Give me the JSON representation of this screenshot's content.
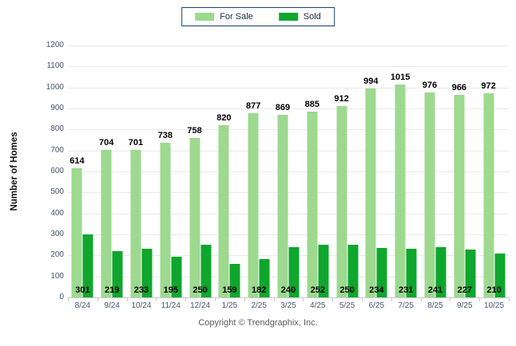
{
  "chart_data": {
    "type": "bar",
    "title": "",
    "ylabel": "Number of Homes",
    "xlabel": "",
    "categories": [
      "8/24",
      "9/24",
      "10/24",
      "11/24",
      "12/24",
      "1/25",
      "2/25",
      "3/25",
      "4/25",
      "5/25",
      "6/25",
      "7/25",
      "8/25",
      "9/25",
      "10/25"
    ],
    "series": [
      {
        "name": "For Sale",
        "color": "#9DD98F",
        "values": [
          614,
          704,
          701,
          738,
          758,
          820,
          877,
          869,
          885,
          912,
          994,
          1015,
          976,
          966,
          972
        ]
      },
      {
        "name": "Sold",
        "color": "#0FA62D",
        "values": [
          301,
          219,
          233,
          195,
          250,
          159,
          182,
          240,
          252,
          250,
          234,
          231,
          241,
          227,
          210
        ]
      }
    ],
    "ylim": [
      0,
      1200
    ],
    "yticks": [
      0,
      100,
      200,
      300,
      400,
      500,
      600,
      700,
      800,
      900,
      1000,
      1100,
      1200
    ],
    "grid": "horizontal",
    "legend_position": "top-center",
    "value_label_style": {
      "for_sale": "above bar",
      "sold": "at bar base"
    }
  },
  "footer": {
    "copyright": "Copyright © Trendgraphix, Inc."
  },
  "colors": {
    "legend_border": "#1F3E6B",
    "axis_text": "#44546A",
    "grid": "#E9E9E9",
    "value_text": "#000000",
    "footer_text": "#595959"
  }
}
